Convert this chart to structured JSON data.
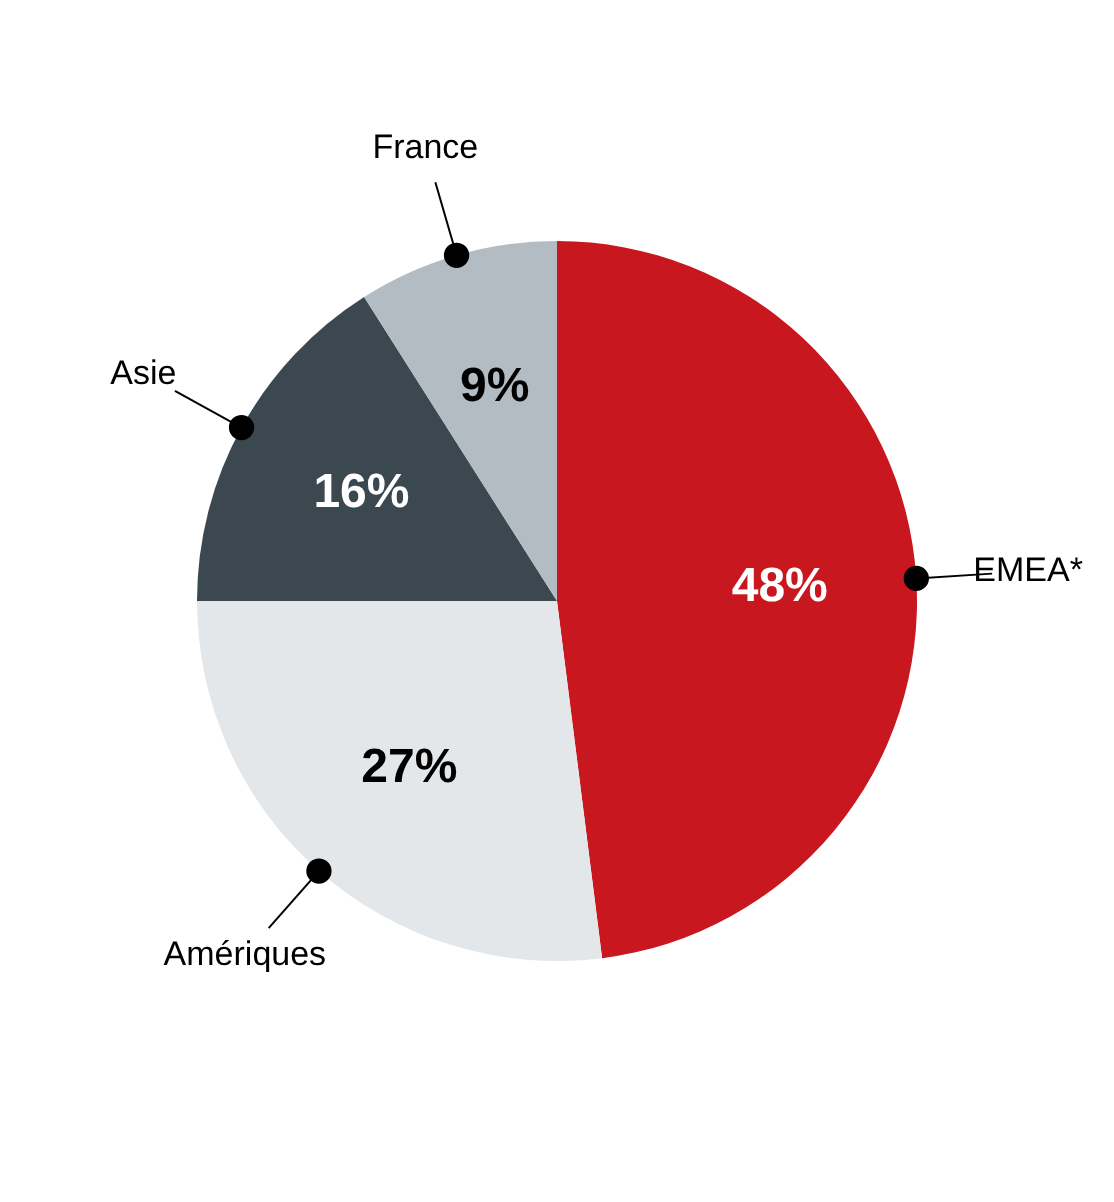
{
  "chart_data": {
    "type": "pie",
    "categories": [
      "EMEA*",
      "Amériques",
      "Asie",
      "France"
    ],
    "values": [
      48,
      27,
      16,
      9
    ],
    "colors": [
      "#c8171e",
      "#e4e7ea",
      "#3c4850",
      "#b4bcc3"
    ],
    "value_labels": [
      "48%",
      "27%",
      "16%",
      "9%"
    ]
  }
}
